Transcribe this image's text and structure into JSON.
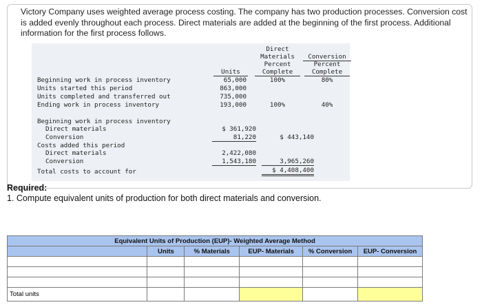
{
  "intro": "Victory Company uses weighted average process costing. The company has two production processes. Conversion cost is added evenly throughout each process. Direct materials are added at the beginning of the first process. Additional information for the first process follows.",
  "table": {
    "col_headers": {
      "units": "Units",
      "dm": [
        "Direct",
        "Materials",
        "Percent",
        "Complete"
      ],
      "conv": [
        "Conversion",
        "Percent",
        "Complete"
      ]
    },
    "unit_rows": [
      {
        "label": "Beginning work in process inventory",
        "units": "65,000",
        "dm": "100%",
        "conv": "80%"
      },
      {
        "label": "Units started this period",
        "units": "863,000",
        "dm": "",
        "conv": ""
      },
      {
        "label": "Units completed and transferred out",
        "units": "735,000",
        "dm": "",
        "conv": ""
      },
      {
        "label": "Ending work in process inventory",
        "units": "193,000",
        "dm": "100%",
        "conv": "40%"
      }
    ],
    "cost_rows": {
      "bwip_label": "Beginning work in process inventory",
      "dm_label": "Direct materials",
      "dm_value": "$ 361,920",
      "conv_label": "Conversion",
      "conv_value": "81,220",
      "bwip_total": "$ 443,140",
      "added_label": "Costs added this period",
      "added_dm_label": "Direct materials",
      "added_dm_value": "2,422,080",
      "added_conv_label": "Conversion",
      "added_conv_value": "1,543,180",
      "added_total": "3,965,260",
      "total_label": "Total costs to account for",
      "total_value": "$ 4,408,400"
    }
  },
  "required": {
    "heading": "Required:",
    "item": "1. Compute equivalent units of production for both direct materials and conversion."
  },
  "eup": {
    "title": "Equivalent Units of Production (EUP)- Weighted Average Method",
    "headers": [
      "Units",
      "% Materials",
      "EUP- Materials",
      "% Conversion",
      "EUP- Conversion"
    ],
    "total_label": "Total units"
  }
}
